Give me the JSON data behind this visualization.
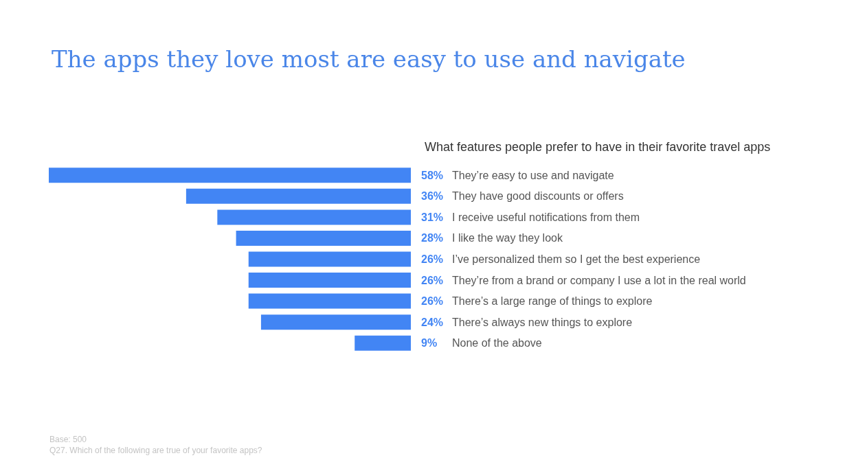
{
  "chart_data": {
    "type": "bar",
    "orientation": "horizontal",
    "title": "The apps they love most are easy to use and navigate",
    "subtitle": "What features people prefer to have in their favorite travel apps",
    "categories": [
      "They’re easy to use and navigate",
      "They have good discounts or offers",
      "I receive useful notifications from them",
      "I like the way they look",
      "I’ve personalized them so I get the best experience",
      "They’re from a brand or company I use a lot in the real world",
      "There’s a large range of things to explore",
      "There’s always new things to explore",
      "None of the above"
    ],
    "values": [
      58,
      36,
      31,
      28,
      26,
      26,
      26,
      24,
      9
    ],
    "value_labels": [
      "58%",
      "36%",
      "31%",
      "28%",
      "26%",
      "26%",
      "26%",
      "24%",
      "9%"
    ],
    "color": "#4285f4",
    "annotations": [
      "Base: 500",
      "Q27. Which of the following are true of your favorite apps?"
    ]
  }
}
